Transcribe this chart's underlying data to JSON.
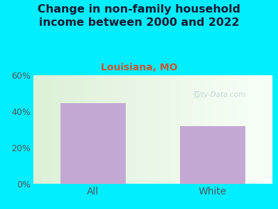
{
  "title": "Change in non-family household\nincome between 2000 and 2022",
  "subtitle": "Louisiana, MO",
  "categories": [
    "All",
    "White"
  ],
  "values": [
    44.5,
    32.0
  ],
  "bar_color": "#c4a8d4",
  "title_fontsize": 11.5,
  "subtitle_fontsize": 10,
  "subtitle_color": "#cc5533",
  "title_color": "#1a1a2e",
  "tick_color": "#555555",
  "ylim": [
    0,
    60
  ],
  "yticks": [
    0,
    20,
    40,
    60
  ],
  "ytick_labels": [
    "0%",
    "20%",
    "40%",
    "60%"
  ],
  "bg_outer": "#00eeff",
  "watermark": "City-Data.com",
  "bar_width": 0.55
}
